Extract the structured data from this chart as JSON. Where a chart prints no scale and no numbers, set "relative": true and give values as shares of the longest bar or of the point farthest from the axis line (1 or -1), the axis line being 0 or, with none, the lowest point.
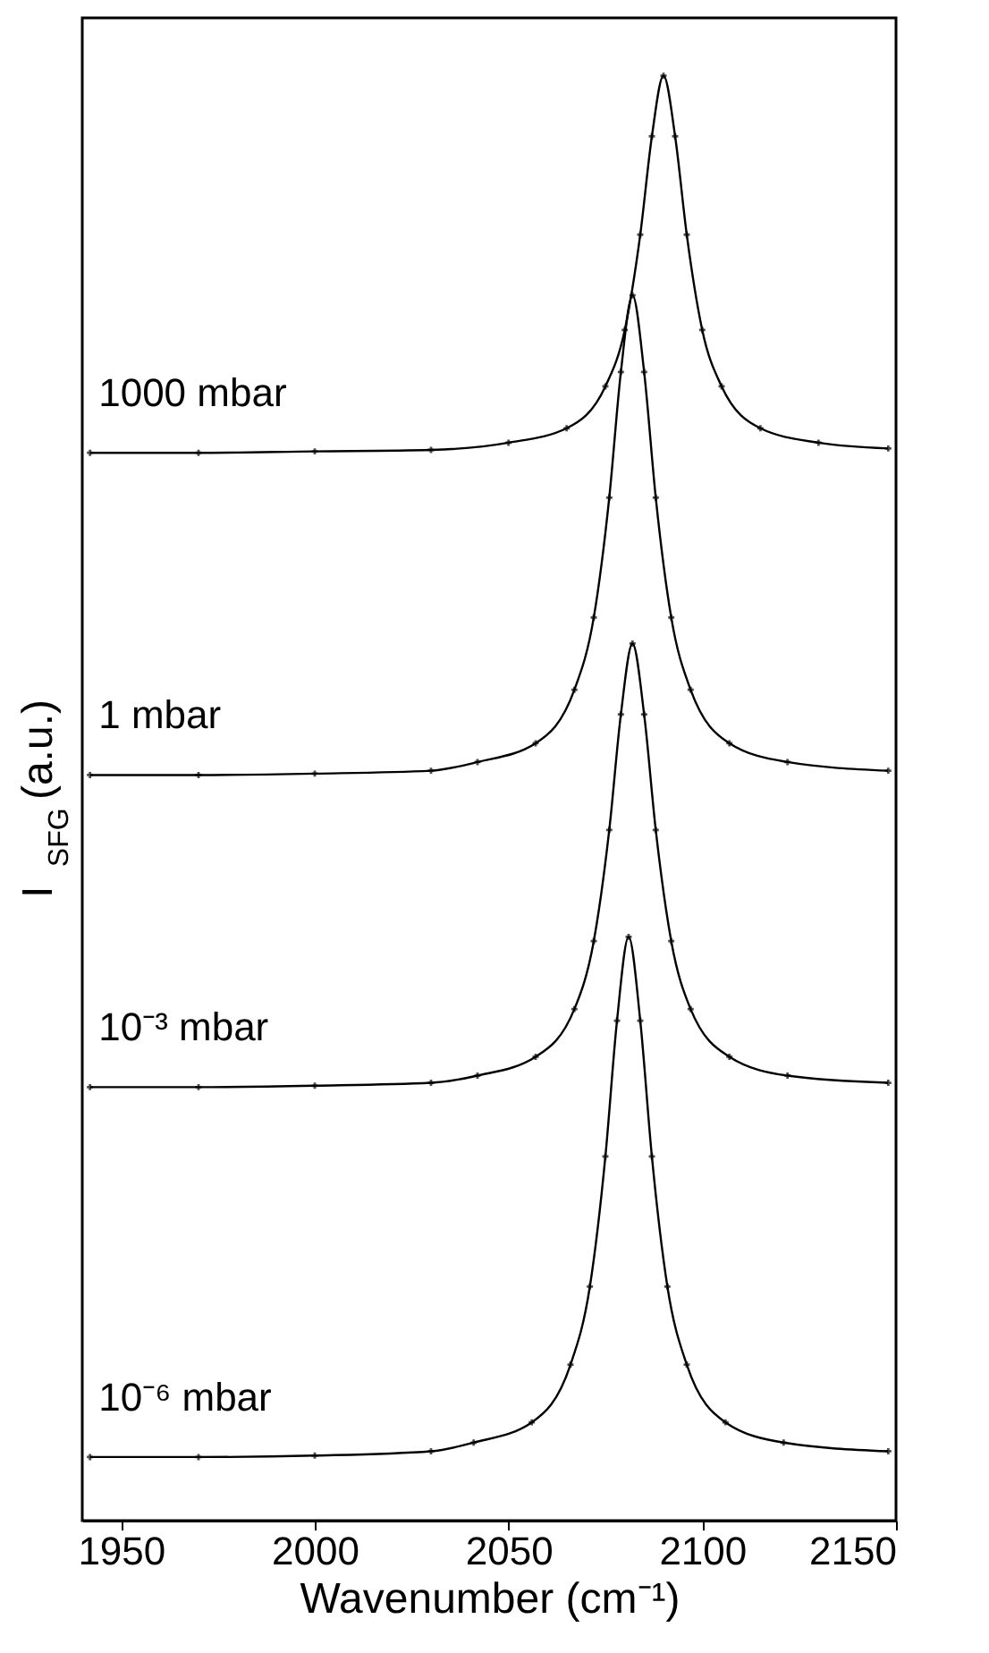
{
  "chart_data": {
    "type": "line",
    "relative": true,
    "xlabel": "Wavenumber (cm⁻¹)",
    "ylabel": "I$_{SFG}$ (a.u.)",
    "xlim": [
      1940,
      2150
    ],
    "xticks": [
      1950,
      2000,
      2050,
      2100,
      2150
    ],
    "grid": false,
    "legend": false,
    "marker": "cross",
    "line_style": "solid",
    "series": [
      {
        "name": "1000 mbar",
        "color": "#000000",
        "x": [
          1942,
          1970,
          2000,
          2030,
          2050,
          2065,
          2075,
          2080,
          2084,
          2087,
          2090,
          2093,
          2096,
          2100,
          2105,
          2115,
          2130,
          2148
        ],
        "values": [
          0.739,
          0.739,
          0.74,
          0.741,
          0.746,
          0.756,
          0.785,
          0.824,
          0.89,
          0.958,
          1.0,
          0.958,
          0.89,
          0.824,
          0.785,
          0.756,
          0.746,
          0.742
        ]
      },
      {
        "name": "1 mbar",
        "color": "#000000",
        "x": [
          1942,
          1970,
          2000,
          2030,
          2042,
          2057,
          2067,
          2072,
          2076,
          2079,
          2082,
          2085,
          2088,
          2092,
          2097,
          2107,
          2122,
          2148
        ],
        "values": [
          0.516,
          0.516,
          0.517,
          0.519,
          0.525,
          0.538,
          0.575,
          0.625,
          0.708,
          0.795,
          0.848,
          0.795,
          0.708,
          0.625,
          0.575,
          0.538,
          0.525,
          0.519
        ]
      },
      {
        "name": "10⁻³ mbar",
        "color": "#000000",
        "x": [
          1942,
          1970,
          2000,
          2030,
          2042,
          2057,
          2067,
          2072,
          2076,
          2079,
          2082,
          2085,
          2088,
          2092,
          2097,
          2107,
          2122,
          2148
        ],
        "values": [
          0.3,
          0.3,
          0.301,
          0.303,
          0.308,
          0.321,
          0.354,
          0.401,
          0.478,
          0.558,
          0.607,
          0.558,
          0.478,
          0.401,
          0.354,
          0.321,
          0.308,
          0.303
        ]
      },
      {
        "name": "10⁻⁶ mbar",
        "color": "#000000",
        "x": [
          1942,
          1970,
          2000,
          2030,
          2041,
          2056,
          2066,
          2071,
          2075,
          2078,
          2081,
          2084,
          2087,
          2091,
          2096,
          2106,
          2121,
          2148
        ],
        "values": [
          0.044,
          0.044,
          0.045,
          0.048,
          0.054,
          0.068,
          0.108,
          0.162,
          0.252,
          0.346,
          0.404,
          0.346,
          0.252,
          0.162,
          0.108,
          0.068,
          0.054,
          0.048
        ]
      }
    ]
  }
}
